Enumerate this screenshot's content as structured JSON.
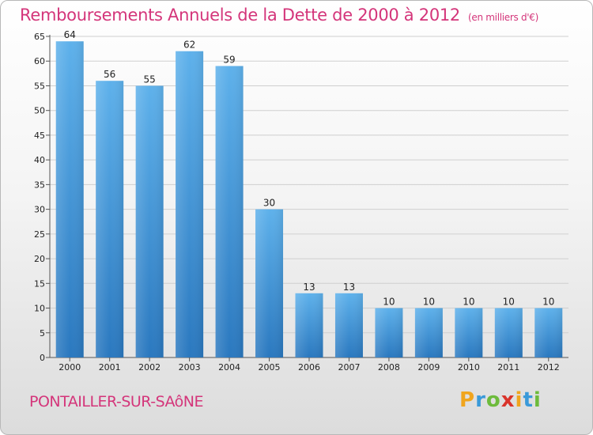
{
  "title": "Remboursements Annuels de la Dette de 2000 à 2012",
  "subtitle": "(en milliers d'€)",
  "commune": "PONTAILLER-SUR-SAôNE",
  "logo": {
    "letters": [
      "P",
      "r",
      "o",
      "x",
      "i",
      "t",
      "i"
    ],
    "colors": [
      "#f0a51e",
      "#3a9ad9",
      "#6dbb3c",
      "#d9342b",
      "#f0a51e",
      "#3a9ad9",
      "#6dbb3c"
    ]
  },
  "colors": {
    "bar_top": "#5eb1eb",
    "bar_bottom": "#2a78bf",
    "accent": "#d4357a"
  },
  "chart_data": {
    "type": "bar",
    "title": "Remboursements Annuels de la Dette de 2000 à 2012",
    "subtitle": "(en milliers d'€)",
    "categories": [
      "2000",
      "2001",
      "2002",
      "2003",
      "2004",
      "2005",
      "2006",
      "2007",
      "2008",
      "2009",
      "2010",
      "2011",
      "2012"
    ],
    "values": [
      64,
      56,
      55,
      62,
      59,
      30,
      13,
      13,
      10,
      10,
      10,
      10,
      10
    ],
    "xlabel": "",
    "ylabel": "",
    "ylim": [
      0,
      65
    ],
    "yticks": [
      0,
      5,
      10,
      15,
      20,
      25,
      30,
      35,
      40,
      45,
      50,
      55,
      60,
      65
    ],
    "grid": true,
    "data_labels": true
  }
}
